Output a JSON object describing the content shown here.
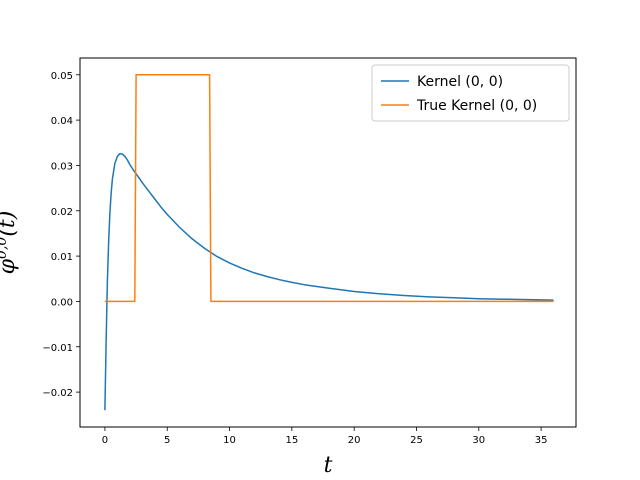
{
  "chart_data": {
    "type": "line",
    "title": "",
    "xlabel": "t",
    "ylabel": "φ0,0(t)",
    "xlim": [
      -2.0,
      37.8
    ],
    "ylim": [
      -0.0277,
      0.0537
    ],
    "xticks": [
      0,
      5,
      10,
      15,
      20,
      25,
      30,
      35
    ],
    "xtick_labels": [
      "0",
      "5",
      "10",
      "15",
      "20",
      "25",
      "30",
      "35"
    ],
    "yticks": [
      -0.02,
      -0.01,
      0.0,
      0.01,
      0.02,
      0.03,
      0.04,
      0.05
    ],
    "ytick_labels": [
      "−0.02",
      "−0.01",
      "0.00",
      "0.01",
      "0.02",
      "0.03",
      "0.04",
      "0.05"
    ],
    "grid": false,
    "legend_position": "top-right",
    "series": [
      {
        "name": "Kernel (0, 0)",
        "color": "#1f77b4",
        "x": [
          0,
          0.1,
          0.2,
          0.3,
          0.4,
          0.5,
          0.6,
          0.8,
          1.0,
          1.2,
          1.4,
          1.6,
          1.8,
          2.0,
          2.3,
          2.6,
          3.0,
          3.5,
          4.0,
          4.5,
          5.0,
          6.0,
          7.0,
          8.0,
          9.0,
          10.0,
          11.0,
          12.0,
          13.0,
          14.0,
          15.0,
          16.0,
          18.0,
          20.0,
          22.0,
          24.0,
          26.0,
          28.0,
          30.0,
          32.0,
          34.0,
          36.0
        ],
        "y": [
          -0.024,
          -0.008,
          0.0045,
          0.0135,
          0.0195,
          0.024,
          0.027,
          0.0305,
          0.032,
          0.0326,
          0.0325,
          0.032,
          0.0312,
          0.0302,
          0.0289,
          0.0278,
          0.0262,
          0.0244,
          0.0226,
          0.0208,
          0.0192,
          0.0163,
          0.0138,
          0.0117,
          0.0099,
          0.0085,
          0.0073,
          0.0063,
          0.0055,
          0.0048,
          0.0042,
          0.0037,
          0.0029,
          0.0022,
          0.0017,
          0.0013,
          0.001,
          0.0008,
          0.0006,
          0.0005,
          0.0004,
          0.0003
        ]
      },
      {
        "name": "True Kernel (0, 0)",
        "color": "#ff7f0e",
        "x": [
          0,
          2.4,
          2.5,
          8.4,
          8.5,
          36.0
        ],
        "y": [
          0,
          0,
          0.05,
          0.05,
          0,
          0
        ]
      }
    ]
  }
}
